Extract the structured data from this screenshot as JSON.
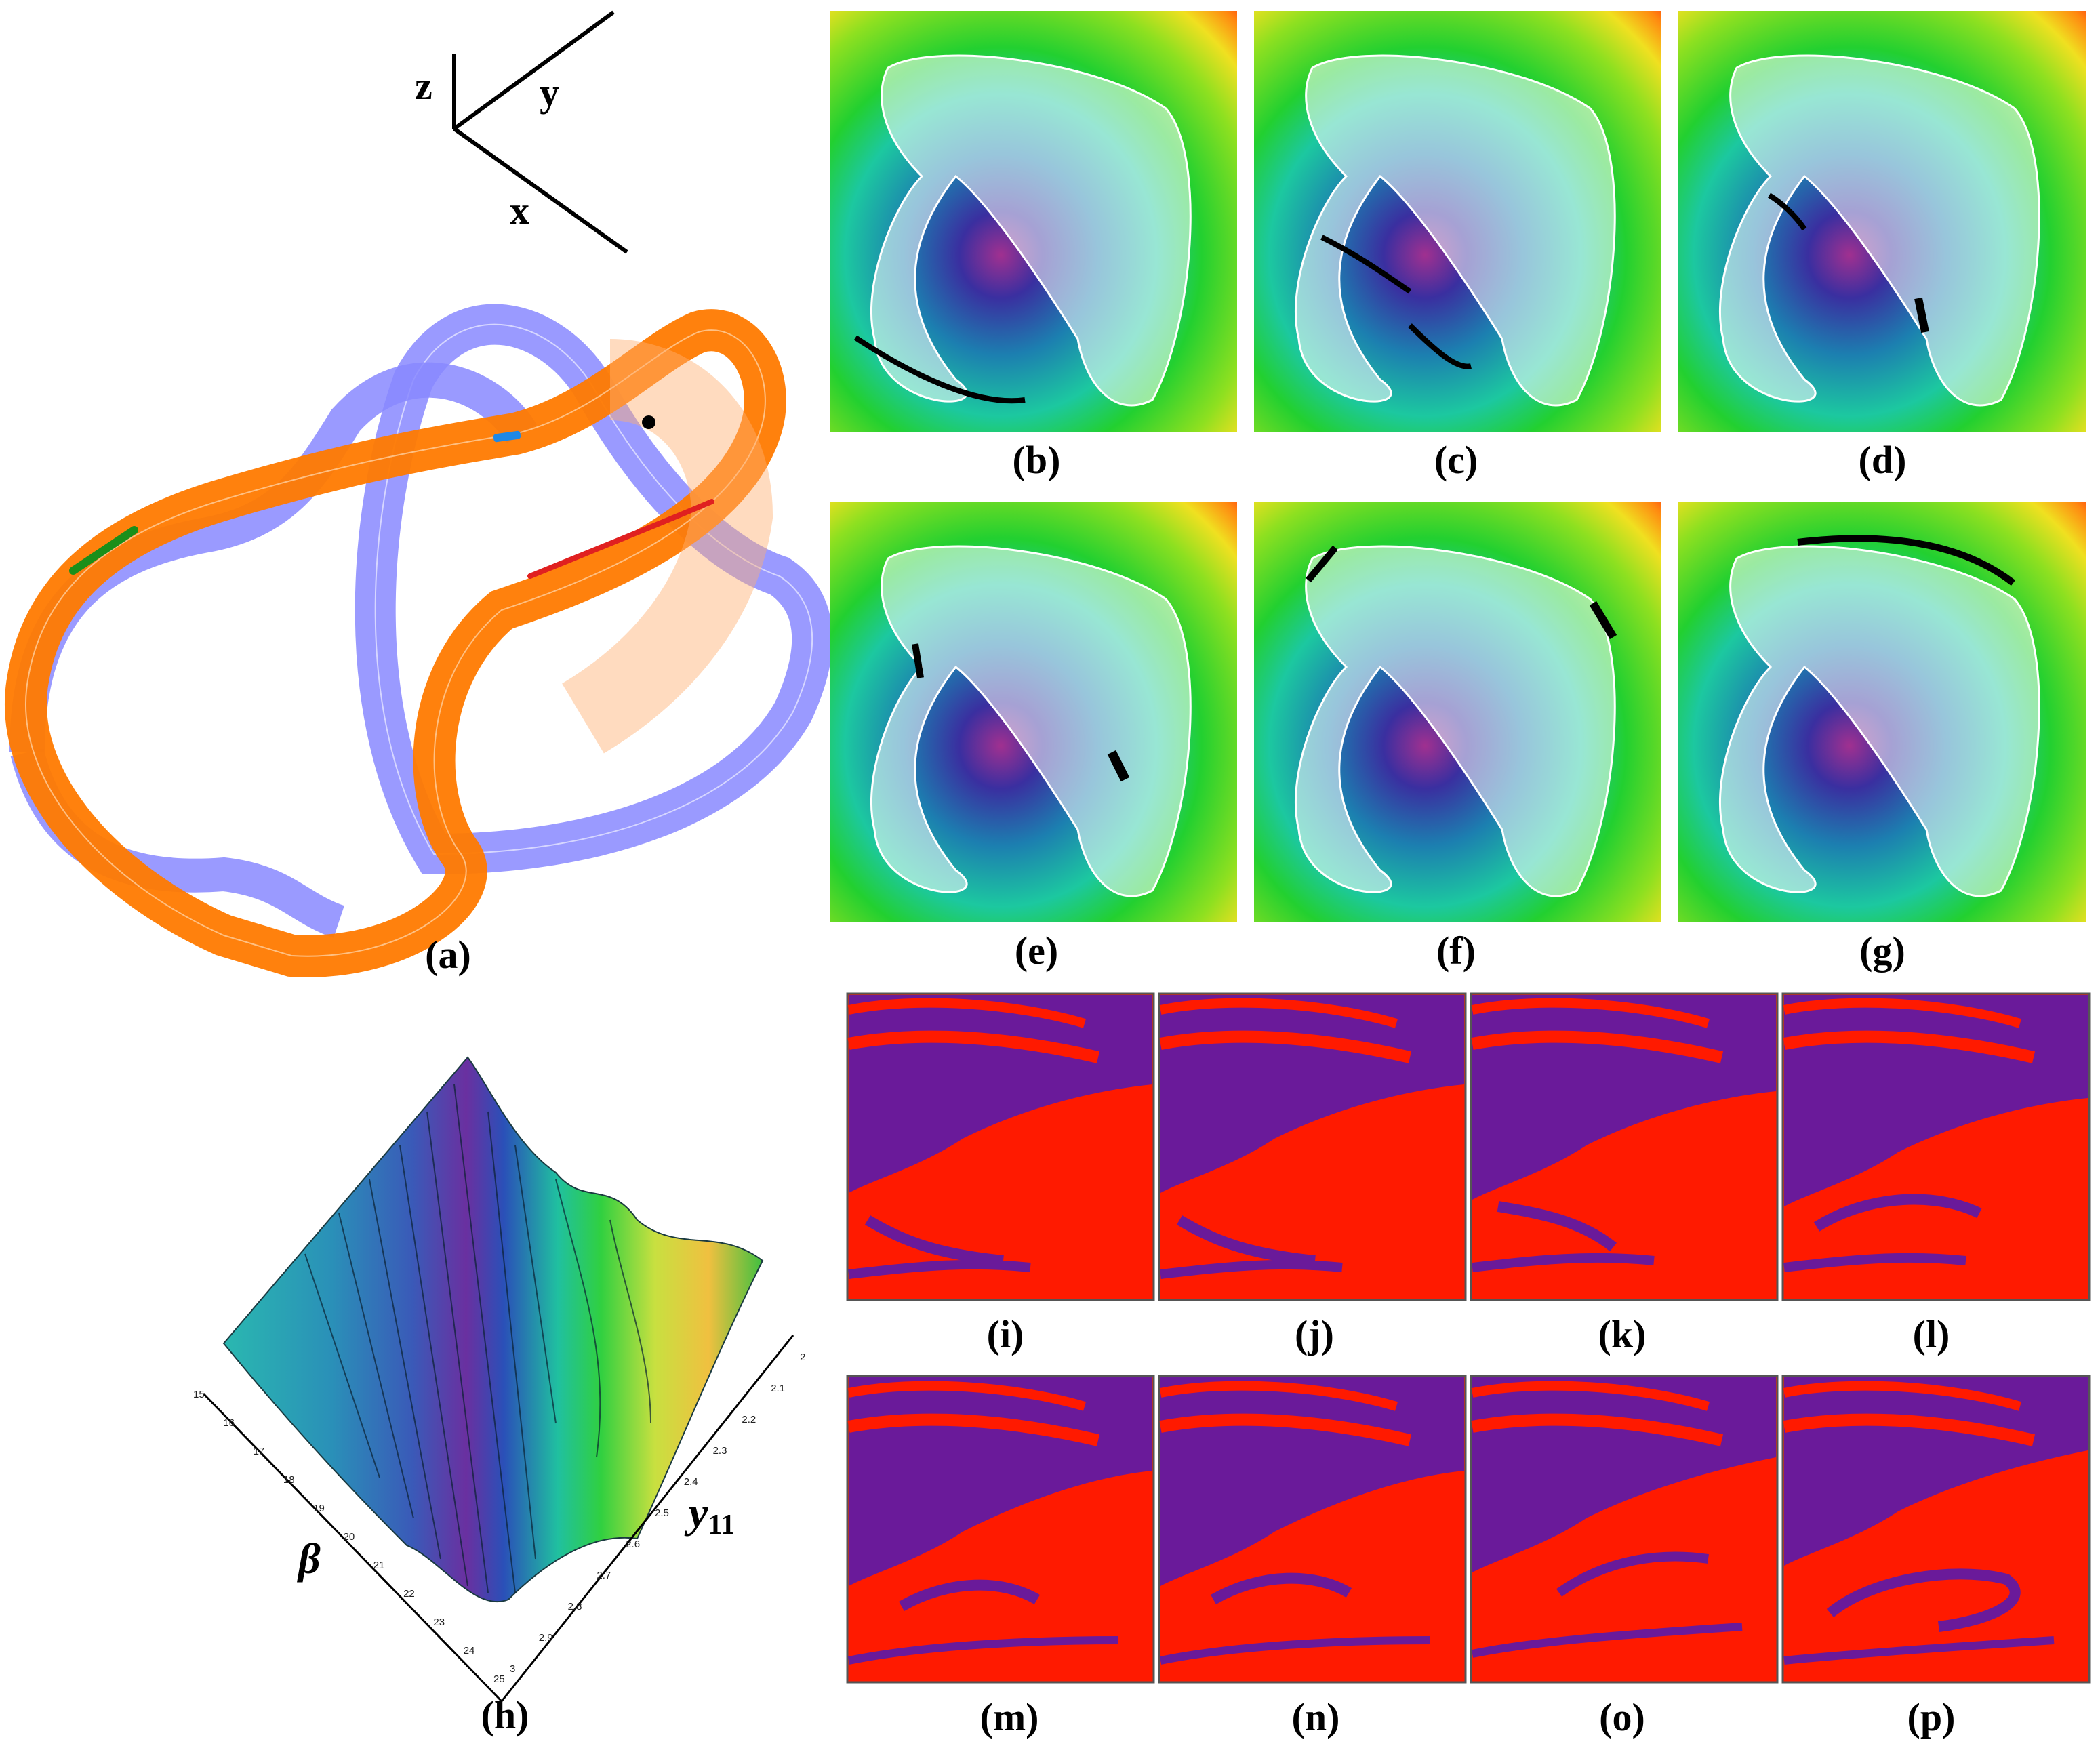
{
  "panel_a": {
    "caption": "(a)",
    "axes": {
      "x": "x",
      "y": "y",
      "z": "z"
    },
    "colors": {
      "orange": "#ff7a00",
      "blue": "#8080ff",
      "black_point": "#000000",
      "blue_mark": "#1e88e5",
      "green_mark": "#1a8f1a",
      "red_mark": "#e02020"
    }
  },
  "panels_bg": [
    {
      "id": "b",
      "caption": "(b)"
    },
    {
      "id": "c",
      "caption": "(c)"
    },
    {
      "id": "d",
      "caption": "(d)"
    },
    {
      "id": "e",
      "caption": "(e)"
    },
    {
      "id": "f",
      "caption": "(f)"
    },
    {
      "id": "g",
      "caption": "(g)"
    }
  ],
  "panel_h": {
    "caption": "(h)",
    "beta_label": "β",
    "y_label": "y",
    "y_subscript": "11",
    "beta_ticks": [
      "15",
      "16",
      "17",
      "18",
      "19",
      "20",
      "21",
      "22",
      "23",
      "24",
      "25"
    ],
    "y_ticks": [
      "2",
      "2.1",
      "2.2",
      "2.3",
      "2.4",
      "2.5",
      "2.6",
      "2.7",
      "2.8",
      "2.9",
      "3"
    ]
  },
  "panels_ip": [
    {
      "id": "i",
      "caption": "(i)"
    },
    {
      "id": "j",
      "caption": "(j)"
    },
    {
      "id": "k",
      "caption": "(k)"
    },
    {
      "id": "l",
      "caption": "(l)"
    },
    {
      "id": "m",
      "caption": "(m)"
    },
    {
      "id": "n",
      "caption": "(n)"
    },
    {
      "id": "o",
      "caption": "(o)"
    },
    {
      "id": "p",
      "caption": "(p)"
    }
  ],
  "basin_colors": {
    "red": "#ff1a00",
    "purple": "#6a1a9a"
  }
}
